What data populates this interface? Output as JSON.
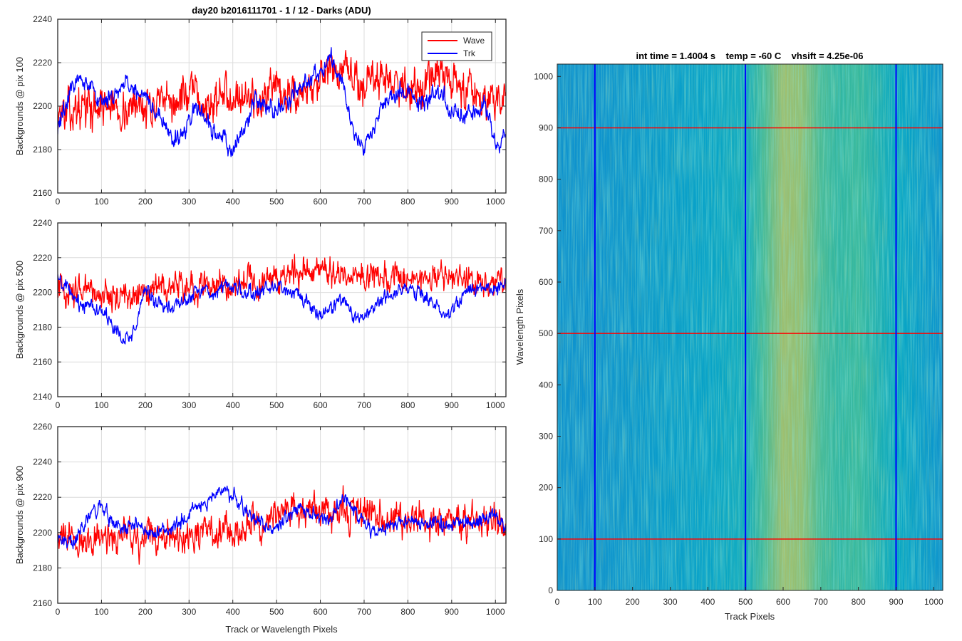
{
  "chart_data": [
    {
      "type": "line",
      "title": "day20 b2016111701 - 1 / 12 - Darks (ADU)",
      "xlabel": "",
      "ylabel": "Backgrounds @ pix 100",
      "xlim": [
        0,
        1024
      ],
      "ylim": [
        2160,
        2240
      ],
      "xticks": [
        0,
        100,
        200,
        300,
        400,
        500,
        600,
        700,
        800,
        900,
        1000
      ],
      "yticks": [
        2160,
        2180,
        2200,
        2220,
        2240
      ],
      "grid": true,
      "legend": "top-right",
      "x": [
        0,
        25,
        50,
        75,
        100,
        125,
        150,
        175,
        200,
        225,
        250,
        275,
        300,
        325,
        350,
        375,
        400,
        425,
        450,
        475,
        500,
        525,
        550,
        575,
        600,
        625,
        650,
        675,
        700,
        725,
        750,
        775,
        800,
        825,
        850,
        875,
        900,
        925,
        950,
        975,
        1000,
        1024
      ],
      "series": [
        {
          "name": "Wave",
          "color": "#ff0000",
          "noise": 9,
          "values": [
            2198,
            2196,
            2200,
            2199,
            2201,
            2200,
            2198,
            2199,
            2203,
            2198,
            2200,
            2203,
            2205,
            2202,
            2200,
            2204,
            2208,
            2205,
            2203,
            2202,
            2205,
            2203,
            2207,
            2210,
            2212,
            2214,
            2216,
            2212,
            2210,
            2212,
            2214,
            2213,
            2209,
            2206,
            2212,
            2214,
            2209,
            2210,
            2208,
            2205,
            2206,
            2203
          ]
        },
        {
          "name": "Trk",
          "color": "#0000ff",
          "noise": 4,
          "values": [
            2190,
            2205,
            2214,
            2210,
            2200,
            2205,
            2210,
            2208,
            2205,
            2197,
            2188,
            2185,
            2192,
            2198,
            2190,
            2183,
            2180,
            2188,
            2203,
            2200,
            2198,
            2203,
            2208,
            2213,
            2215,
            2222,
            2212,
            2185,
            2182,
            2193,
            2203,
            2205,
            2208,
            2203,
            2203,
            2206,
            2197,
            2196,
            2198,
            2200,
            2181,
            2186
          ]
        }
      ]
    },
    {
      "type": "line",
      "title": "",
      "xlabel": "",
      "ylabel": "Backgrounds @ pix 500",
      "xlim": [
        0,
        1024
      ],
      "ylim": [
        2140,
        2240
      ],
      "xticks": [
        0,
        100,
        200,
        300,
        400,
        500,
        600,
        700,
        800,
        900,
        1000
      ],
      "yticks": [
        2140,
        2160,
        2180,
        2200,
        2220,
        2240
      ],
      "grid": true,
      "x": [
        0,
        25,
        50,
        75,
        100,
        125,
        150,
        175,
        200,
        225,
        250,
        275,
        300,
        325,
        350,
        375,
        400,
        425,
        450,
        475,
        500,
        525,
        550,
        575,
        600,
        625,
        650,
        675,
        700,
        725,
        750,
        775,
        800,
        825,
        850,
        875,
        900,
        925,
        950,
        975,
        1000,
        1024
      ],
      "series": [
        {
          "name": "Wave",
          "color": "#ff0000",
          "noise": 8,
          "values": [
            2204,
            2200,
            2199,
            2201,
            2199,
            2200,
            2198,
            2197,
            2199,
            2202,
            2201,
            2203,
            2202,
            2204,
            2203,
            2205,
            2206,
            2206,
            2205,
            2208,
            2210,
            2211,
            2212,
            2213,
            2213,
            2212,
            2211,
            2210,
            2210,
            2209,
            2208,
            2209,
            2208,
            2207,
            2208,
            2208,
            2206,
            2207,
            2206,
            2207,
            2206,
            2205
          ]
        },
        {
          "name": "Trk",
          "color": "#0000ff",
          "noise": 4,
          "values": [
            2207,
            2200,
            2193,
            2194,
            2190,
            2180,
            2172,
            2178,
            2203,
            2195,
            2190,
            2192,
            2198,
            2202,
            2200,
            2203,
            2205,
            2200,
            2198,
            2203,
            2205,
            2200,
            2198,
            2192,
            2185,
            2190,
            2196,
            2188,
            2184,
            2194,
            2198,
            2200,
            2203,
            2200,
            2195,
            2190,
            2188,
            2198,
            2202,
            2203,
            2202,
            2203
          ]
        }
      ]
    },
    {
      "type": "line",
      "title": "",
      "xlabel": "Track or Wavelength Pixels",
      "ylabel": "Backgrounds @ pix 900",
      "xlim": [
        0,
        1024
      ],
      "ylim": [
        2160,
        2260
      ],
      "xticks": [
        0,
        100,
        200,
        300,
        400,
        500,
        600,
        700,
        800,
        900,
        1000
      ],
      "yticks": [
        2160,
        2180,
        2200,
        2220,
        2240,
        2260
      ],
      "grid": true,
      "x": [
        0,
        25,
        50,
        75,
        100,
        125,
        150,
        175,
        200,
        225,
        250,
        275,
        300,
        325,
        350,
        375,
        400,
        425,
        450,
        475,
        500,
        525,
        550,
        575,
        600,
        625,
        650,
        675,
        700,
        725,
        750,
        775,
        800,
        825,
        850,
        875,
        900,
        925,
        950,
        975,
        1000,
        1024
      ],
      "series": [
        {
          "name": "Wave",
          "color": "#ff0000",
          "noise": 9,
          "values": [
            2198,
            2197,
            2196,
            2197,
            2198,
            2196,
            2197,
            2198,
            2197,
            2196,
            2197,
            2198,
            2200,
            2201,
            2201,
            2202,
            2200,
            2203,
            2205,
            2207,
            2210,
            2212,
            2212,
            2214,
            2212,
            2213,
            2212,
            2213,
            2211,
            2212,
            2210,
            2208,
            2208,
            2207,
            2206,
            2205,
            2204,
            2205,
            2206,
            2206,
            2207,
            2206
          ]
        },
        {
          "name": "Trk",
          "color": "#0000ff",
          "noise": 4,
          "values": [
            2195,
            2193,
            2202,
            2210,
            2215,
            2205,
            2202,
            2203,
            2202,
            2200,
            2201,
            2205,
            2210,
            2214,
            2220,
            2224,
            2222,
            2214,
            2208,
            2203,
            2202,
            2210,
            2215,
            2212,
            2207,
            2210,
            2218,
            2214,
            2205,
            2198,
            2203,
            2206,
            2208,
            2205,
            2206,
            2204,
            2205,
            2205,
            2206,
            2209,
            2210,
            2202
          ]
        }
      ]
    },
    {
      "type": "heatmap",
      "title": "int time = 1.4004 s    temp = -60 C    vhsift = 4.25e-06",
      "xlabel": "Track Pixels",
      "ylabel": "Wavelength Pixels",
      "xlim": [
        0,
        1024
      ],
      "ylim": [
        0,
        1024
      ],
      "xticks": [
        0,
        100,
        200,
        300,
        400,
        500,
        600,
        700,
        800,
        900,
        1000
      ],
      "yticks": [
        0,
        100,
        200,
        300,
        400,
        500,
        600,
        700,
        800,
        900,
        1000
      ],
      "colormap": "parula",
      "brightest_track_range": [
        560,
        700
      ],
      "column_profile": {
        "x": [
          0,
          100,
          200,
          300,
          400,
          500,
          550,
          600,
          650,
          700,
          750,
          800,
          850,
          900,
          1000,
          1024
        ],
        "level": [
          0.3,
          0.3,
          0.32,
          0.34,
          0.36,
          0.4,
          0.52,
          0.64,
          0.62,
          0.52,
          0.48,
          0.5,
          0.44,
          0.38,
          0.32,
          0.3
        ]
      },
      "vertical_markers": {
        "x": [
          100,
          500,
          900
        ],
        "color": "#0000ff"
      },
      "horizontal_markers": {
        "y": [
          100,
          500,
          900
        ],
        "color": "#ff0000"
      }
    }
  ]
}
